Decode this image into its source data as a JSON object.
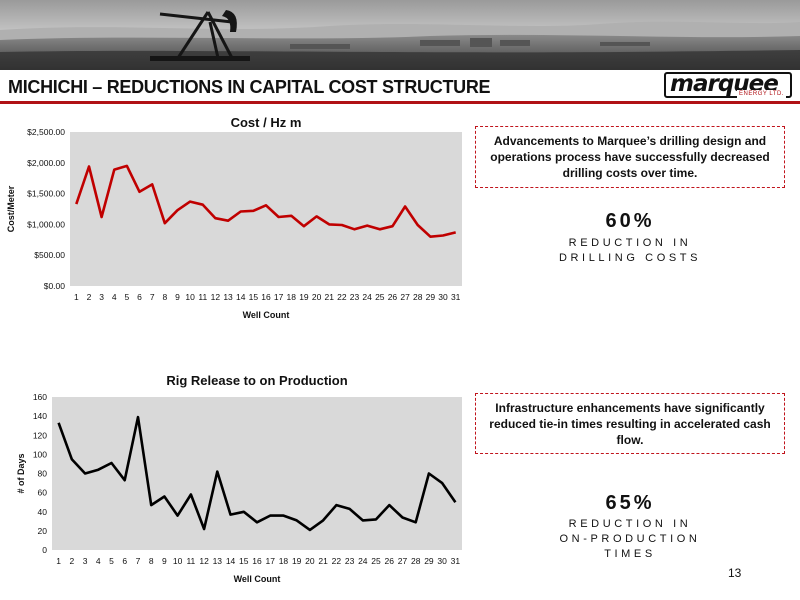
{
  "slide": {
    "title": "MICHICHI – REDUCTIONS IN CAPITAL COST STRUCTURE",
    "page_number": "13"
  },
  "logo": {
    "word": "marquee",
    "sub": "ENERGY LTD."
  },
  "callouts": [
    {
      "text": "Advancements to Marquee’s drilling design and operations process have successfully decreased drilling costs over time.",
      "stat_value": "60%",
      "stat_caption": "REDUCTION IN\nDRILLING COSTS"
    },
    {
      "text": "Infrastructure enhancements have significantly reduced tie-in times resulting in accelerated cash flow.",
      "stat_value": "65%",
      "stat_caption": "REDUCTION IN\nON-PRODUCTION\nTIMES"
    }
  ],
  "colors": {
    "accent": "#b01116",
    "chart_bg": "#d9d9d9",
    "series1": "#c00000",
    "series2": "#000000"
  },
  "chart_data": [
    {
      "type": "line",
      "title": "Cost / Hz m",
      "xlabel": "Well Count",
      "ylabel": "Cost/Meter",
      "x": [
        1,
        2,
        3,
        4,
        5,
        6,
        7,
        8,
        9,
        10,
        11,
        12,
        13,
        14,
        15,
        16,
        17,
        18,
        19,
        20,
        21,
        22,
        23,
        24,
        25,
        26,
        27,
        28,
        29,
        30,
        31
      ],
      "series": [
        {
          "values": [
            1330,
            1940,
            1120,
            1890,
            1950,
            1530,
            1650,
            1020,
            1230,
            1370,
            1320,
            1100,
            1060,
            1210,
            1220,
            1310,
            1120,
            1140,
            970,
            1130,
            1000,
            990,
            920,
            980,
            920,
            970,
            1290,
            990,
            800,
            820,
            870
          ]
        }
      ],
      "ylim": [
        0,
        2500
      ],
      "yticks": [
        "$0.00",
        "$500.00",
        "$1,000.00",
        "$1,500.00",
        "$2,000.00",
        "$2,500.00"
      ],
      "grid": false,
      "legend": "none"
    },
    {
      "type": "line",
      "title": "Rig Release to on Production",
      "xlabel": "Well Count",
      "ylabel": "# of Days",
      "x": [
        1,
        2,
        3,
        4,
        5,
        6,
        7,
        8,
        9,
        10,
        11,
        12,
        13,
        14,
        15,
        16,
        17,
        18,
        19,
        20,
        21,
        22,
        23,
        24,
        25,
        26,
        27,
        28,
        29,
        30,
        31
      ],
      "series": [
        {
          "values": [
            133,
            95,
            80,
            84,
            91,
            73,
            139,
            47,
            56,
            36,
            58,
            22,
            82,
            37,
            40,
            29,
            36,
            36,
            31,
            21,
            31,
            47,
            43,
            31,
            32,
            47,
            34,
            29,
            80,
            70,
            50
          ]
        }
      ],
      "ylim": [
        0,
        160
      ],
      "yticks": [
        "0",
        "20",
        "40",
        "60",
        "80",
        "100",
        "120",
        "140",
        "160"
      ],
      "grid": false,
      "legend": "none"
    }
  ]
}
